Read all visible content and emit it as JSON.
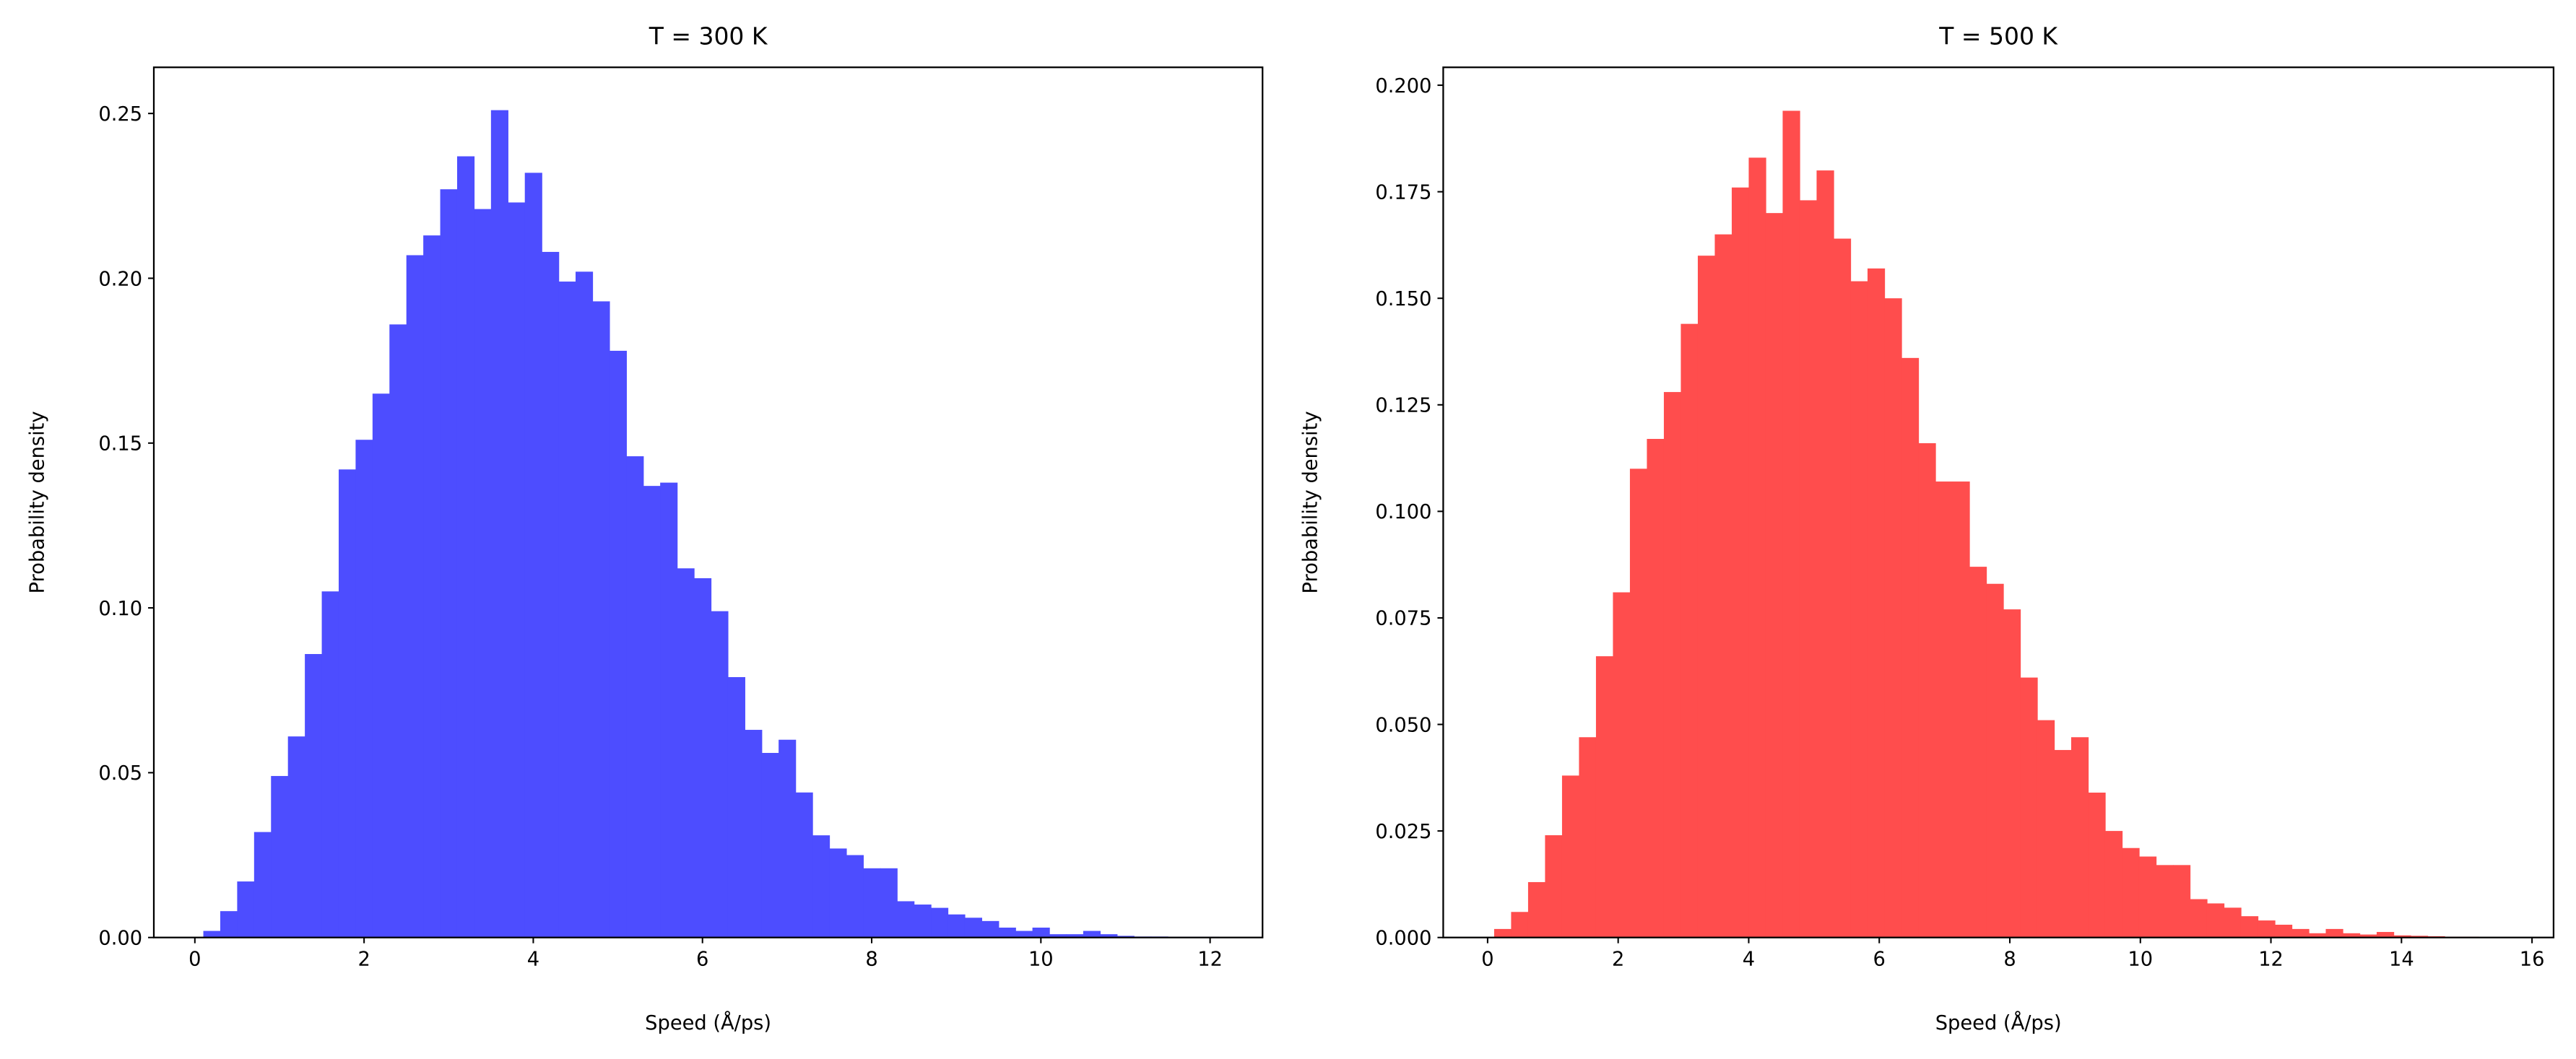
{
  "chart_data": [
    {
      "type": "histogram",
      "title": "T = 300 K",
      "xlabel": "Speed (Å/ps)",
      "ylabel": "Probability density",
      "color": "#4d4dff",
      "bins": [
        0.1,
        0.3,
        0.5,
        0.7,
        0.9,
        1.1,
        1.3,
        1.5,
        1.7,
        1.9,
        2.1,
        2.3,
        2.5,
        2.7,
        2.9,
        3.1,
        3.3,
        3.5,
        3.7,
        3.9,
        4.1,
        4.3,
        4.5,
        4.7,
        4.9,
        5.1,
        5.3,
        5.5,
        5.7,
        5.9,
        6.1,
        6.3,
        6.5,
        6.7,
        6.9,
        7.1,
        7.3,
        7.5,
        7.7,
        7.9,
        8.1,
        8.3,
        8.5,
        8.7,
        8.9,
        9.1,
        9.3,
        9.5,
        9.7,
        9.9,
        10.1,
        10.3,
        10.5,
        10.7,
        10.9,
        11.1,
        11.3,
        11.5,
        11.7,
        11.9,
        12.1
      ],
      "values": [
        0.002,
        0.008,
        0.017,
        0.032,
        0.049,
        0.061,
        0.086,
        0.105,
        0.142,
        0.151,
        0.165,
        0.186,
        0.207,
        0.213,
        0.227,
        0.237,
        0.221,
        0.251,
        0.223,
        0.232,
        0.208,
        0.199,
        0.202,
        0.193,
        0.178,
        0.146,
        0.137,
        0.138,
        0.112,
        0.109,
        0.099,
        0.079,
        0.063,
        0.056,
        0.06,
        0.044,
        0.031,
        0.027,
        0.025,
        0.021,
        0.021,
        0.011,
        0.01,
        0.009,
        0.007,
        0.006,
        0.005,
        0.003,
        0.002,
        0.003,
        0.001,
        0.001,
        0.002,
        0.001,
        0.0005,
        0.0003,
        0.0003,
        0.0002,
        0.0002,
        0.0002
      ],
      "xlim": [
        -0.485,
        12.62
      ],
      "ylim": [
        0,
        0.264
      ],
      "xticks": [
        0,
        2,
        4,
        6,
        8,
        10,
        12
      ],
      "yticks": [
        {
          "value": 0,
          "label": "0.00"
        },
        {
          "value": 0.05,
          "label": "0.05"
        },
        {
          "value": 0.1,
          "label": "0.10"
        },
        {
          "value": 0.15,
          "label": "0.15"
        },
        {
          "value": 0.2,
          "label": "0.20"
        },
        {
          "value": 0.25,
          "label": "0.25"
        }
      ]
    },
    {
      "type": "histogram",
      "title": "T = 500 K",
      "xlabel": "Speed (Å/ps)",
      "ylabel": "Probability density",
      "color": "#ff4d4d",
      "bins": [
        0.1,
        0.36,
        0.62,
        0.88,
        1.14,
        1.4,
        1.66,
        1.92,
        2.18,
        2.44,
        2.7,
        2.96,
        3.22,
        3.48,
        3.74,
        4.0,
        4.26,
        4.52,
        4.78,
        5.04,
        5.3,
        5.56,
        5.82,
        6.08,
        6.34,
        6.6,
        6.86,
        7.12,
        7.38,
        7.64,
        7.9,
        8.16,
        8.42,
        8.68,
        8.94,
        9.2,
        9.46,
        9.72,
        9.98,
        10.24,
        10.5,
        10.76,
        11.02,
        11.28,
        11.54,
        11.8,
        12.06,
        12.32,
        12.58,
        12.84,
        13.1,
        13.36,
        13.62,
        13.88,
        14.14,
        14.4,
        14.66,
        14.92,
        15.18,
        15.44,
        15.7
      ],
      "values": [
        0.002,
        0.006,
        0.013,
        0.024,
        0.038,
        0.047,
        0.066,
        0.081,
        0.11,
        0.117,
        0.128,
        0.144,
        0.16,
        0.165,
        0.176,
        0.183,
        0.17,
        0.194,
        0.173,
        0.18,
        0.164,
        0.154,
        0.157,
        0.15,
        0.136,
        0.116,
        0.107,
        0.107,
        0.087,
        0.083,
        0.077,
        0.061,
        0.051,
        0.044,
        0.047,
        0.034,
        0.025,
        0.021,
        0.019,
        0.017,
        0.017,
        0.009,
        0.008,
        0.007,
        0.005,
        0.004,
        0.003,
        0.002,
        0.001,
        0.002,
        0.001,
        0.0007,
        0.0013,
        0.0005,
        0.0004,
        0.0003,
        0.0002,
        0.0002,
        0.0001,
        0.0001
      ],
      "xlim": [
        -0.68,
        16.33
      ],
      "ylim": [
        0,
        0.2042
      ],
      "xticks": [
        0,
        2,
        4,
        6,
        8,
        10,
        12,
        14,
        16
      ],
      "yticks": [
        {
          "value": 0,
          "label": "0.000"
        },
        {
          "value": 0.025,
          "label": "0.025"
        },
        {
          "value": 0.05,
          "label": "0.050"
        },
        {
          "value": 0.075,
          "label": "0.075"
        },
        {
          "value": 0.1,
          "label": "0.100"
        },
        {
          "value": 0.125,
          "label": "0.125"
        },
        {
          "value": 0.15,
          "label": "0.150"
        },
        {
          "value": 0.175,
          "label": "0.175"
        },
        {
          "value": 0.2,
          "label": "0.200"
        }
      ]
    }
  ]
}
